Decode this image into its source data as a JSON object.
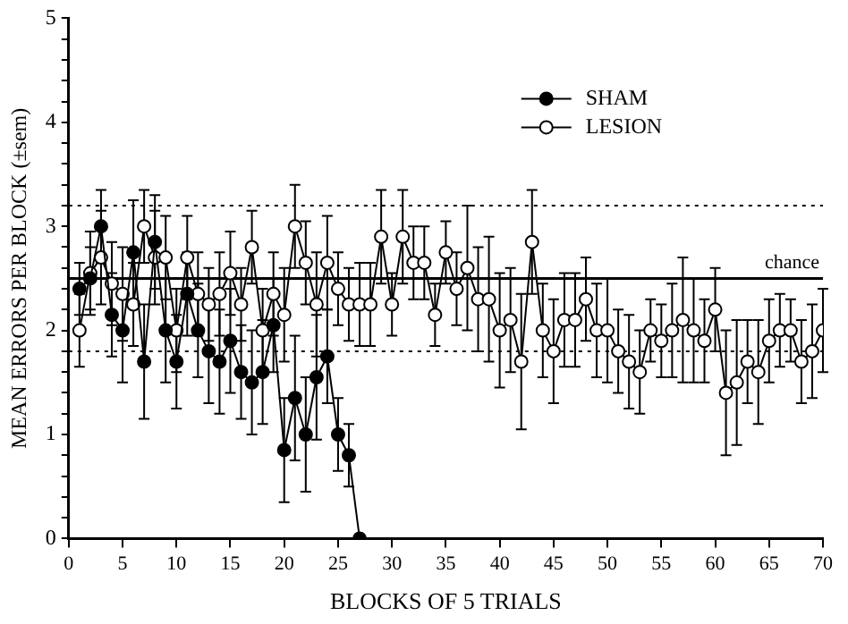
{
  "chart_data": {
    "type": "line",
    "xlabel": "BLOCKS OF 5 TRIALS",
    "ylabel": "MEAN ERRORS PER BLOCK (±sem)",
    "xlim": [
      0,
      70
    ],
    "xticks": [
      0,
      5,
      10,
      15,
      20,
      25,
      30,
      35,
      40,
      45,
      50,
      55,
      60,
      65,
      70
    ],
    "ylim": [
      0,
      5
    ],
    "yticks": [
      0,
      {
        "value": 0.2,
        "label": null
      },
      {
        "value": 0.4,
        "label": null
      },
      {
        "value": 0.6,
        "label": null
      },
      {
        "value": 0.8,
        "label": null
      },
      1,
      {
        "value": 1.2,
        "label": null
      },
      {
        "value": 1.4,
        "label": null
      },
      {
        "value": 1.6,
        "label": null
      },
      {
        "value": 1.8,
        "label": null
      },
      2,
      {
        "value": 2.2,
        "label": null
      },
      {
        "value": 2.4,
        "label": null
      },
      {
        "value": 2.6,
        "label": null
      },
      {
        "value": 2.8,
        "label": null
      },
      3,
      {
        "value": 3.2,
        "label": null
      },
      {
        "value": 3.4,
        "label": null
      },
      {
        "value": 3.6,
        "label": null
      },
      {
        "value": 3.8,
        "label": null
      },
      4,
      {
        "value": 4.2,
        "label": null
      },
      {
        "value": 4.4,
        "label": null
      },
      {
        "value": 4.6,
        "label": null
      },
      {
        "value": 4.8,
        "label": null
      },
      5
    ],
    "marker": "circle",
    "legend": "top right",
    "grid": false,
    "series": [
      {
        "name": "SHAM",
        "color": "#000000",
        "x": [
          1,
          2,
          3,
          4,
          5,
          6,
          7,
          8,
          9,
          10,
          11,
          12,
          13,
          14,
          15,
          16,
          17,
          18,
          19,
          20,
          21,
          22,
          23,
          24,
          25,
          26,
          27
        ],
        "values": [
          2.4,
          2.5,
          3.0,
          2.15,
          2.0,
          2.75,
          1.7,
          2.85,
          2.0,
          1.7,
          2.35,
          2.0,
          1.8,
          1.7,
          1.9,
          1.6,
          1.5,
          1.6,
          2.05,
          0.85,
          1.35,
          1.0,
          1.55,
          1.75,
          1.0,
          0.8,
          0
        ],
        "errors": [
          0.25,
          0.3,
          0.35,
          0.4,
          0.5,
          0.5,
          0.55,
          0.45,
          0.5,
          0.45,
          0.4,
          0.45,
          0.5,
          0.5,
          0.5,
          0.45,
          0.5,
          0.5,
          0.45,
          0.5,
          0.6,
          0.55,
          0.6,
          0.45,
          0.35,
          0.3,
          null
        ]
      },
      {
        "name": "LESION",
        "color": "#ffffff",
        "x": [
          1,
          2,
          3,
          4,
          5,
          6,
          7,
          8,
          9,
          10,
          11,
          12,
          13,
          14,
          15,
          16,
          17,
          18,
          19,
          20,
          21,
          22,
          23,
          24,
          25,
          26,
          27,
          28,
          29,
          30,
          31,
          32,
          33,
          34,
          35,
          36,
          37,
          38,
          39,
          40,
          41,
          42,
          43,
          44,
          45,
          46,
          47,
          48,
          49,
          50,
          51,
          52,
          53,
          54,
          55,
          56,
          57,
          58,
          59,
          60,
          61,
          62,
          63,
          64,
          65,
          66,
          67,
          68,
          69,
          70
        ],
        "values": [
          2.0,
          2.55,
          2.7,
          2.45,
          2.35,
          2.25,
          3.0,
          2.7,
          2.7,
          2.0,
          2.7,
          2.35,
          2.25,
          2.35,
          2.55,
          2.25,
          2.8,
          2.0,
          2.35,
          2.15,
          3.0,
          2.65,
          2.25,
          2.65,
          2.4,
          2.25,
          2.25,
          2.25,
          2.9,
          2.25,
          2.9,
          2.65,
          2.65,
          2.15,
          2.75,
          2.4,
          2.6,
          2.3,
          2.3,
          2.0,
          2.1,
          1.7,
          2.85,
          2.0,
          1.8,
          2.1,
          2.1,
          2.3,
          2.0,
          2.0,
          1.8,
          1.7,
          1.6,
          2.0,
          1.9,
          2.0,
          2.1,
          2.0,
          1.9,
          2.2,
          1.4,
          1.5,
          1.7,
          1.6,
          1.9,
          2.0,
          2.0,
          1.7,
          1.8,
          2.0
        ],
        "errors": [
          0.35,
          0.4,
          0.45,
          0.4,
          0.45,
          0.4,
          0.35,
          0.45,
          0.4,
          0.4,
          0.4,
          0.4,
          0.35,
          0.4,
          0.4,
          0.35,
          0.35,
          0.4,
          0.4,
          0.45,
          0.4,
          0.4,
          0.5,
          0.45,
          0.35,
          0.35,
          0.4,
          0.4,
          0.45,
          0.3,
          0.45,
          0.35,
          0.35,
          0.3,
          0.3,
          0.35,
          0.6,
          0.5,
          0.6,
          0.55,
          0.5,
          0.65,
          0.5,
          0.45,
          0.5,
          0.45,
          0.45,
          0.4,
          0.45,
          0.5,
          0.4,
          0.45,
          0.4,
          0.3,
          0.35,
          0.45,
          0.6,
          0.5,
          0.4,
          0.4,
          0.6,
          0.6,
          0.4,
          0.5,
          0.4,
          0.35,
          0.3,
          0.4,
          0.45,
          0.4
        ]
      }
    ],
    "ref_lines": [
      {
        "axis": "y",
        "value": 2.5,
        "label": "chance",
        "line_style": "solid"
      },
      {
        "axis": "y",
        "value": 3.2,
        "label": null,
        "line_style": "dotted"
      },
      {
        "axis": "y",
        "value": 1.8,
        "label": null,
        "line_style": "dotted"
      }
    ]
  }
}
